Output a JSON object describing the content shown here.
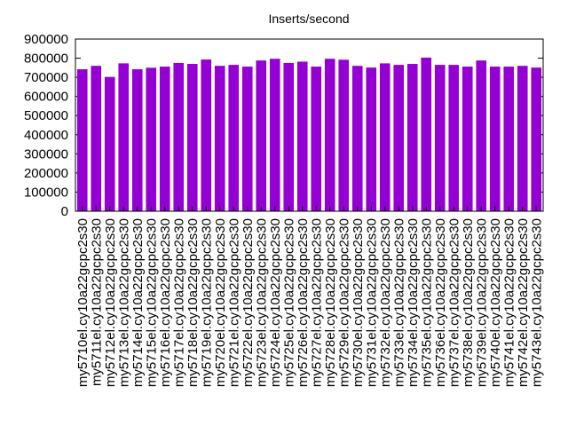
{
  "chart_data": {
    "type": "bar",
    "title": "Inserts/second",
    "xlabel": "",
    "ylabel": "",
    "ylim": [
      0,
      900000
    ],
    "yticks": [
      "0",
      "100000",
      "200000",
      "300000",
      "400000",
      "500000",
      "600000",
      "700000",
      "800000",
      "900000"
    ],
    "grid": false,
    "bar_color": "#9400d3",
    "categories": [
      "my5710el.cy10a22gcpc2s30",
      "my5711el.cy10a22gcpc2s30",
      "my5712el.cy10a22gcpc2s30",
      "my5713el.cy10a22gcpc2s30",
      "my5714el.cy10a22gcpc2s30",
      "my5715el.cy10a22gcpc2s30",
      "my5716el.cy10a22gcpc2s30",
      "my5717el.cy10a22gcpc2s30",
      "my5718el.cy10a22gcpc2s30",
      "my5719el.cy10a22gcpc2s30",
      "my5720el.cy10a22gcpc2s30",
      "my5721el.cy10a22gcpc2s30",
      "my5722el.cy10a22gcpc2s30",
      "my5723el.cy10a22gcpc2s30",
      "my5724el.cy10a22gcpc2s30",
      "my5725el.cy10a22gcpc2s30",
      "my5726el.cy10a22gcpc2s30",
      "my5727el.cy10a22gcpc2s30",
      "my5728el.cy10a22gcpc2s30",
      "my5729el.cy10a22gcpc2s30",
      "my5730el.cy10a22gcpc2s30",
      "my5731el.cy10a22gcpc2s30",
      "my5732el.cy10a22gcpc2s30",
      "my5733el.cy10a22gcpc2s30",
      "my5734el.cy10a22gcpc2s30",
      "my5735el.cy10a22gcpc2s30",
      "my5736el.cy10a22gcpc2s30",
      "my5737el.cy10a22gcpc2s30",
      "my5738el.cy10a22gcpc2s30",
      "my5739el.cy10a22gcpc2s30",
      "my5740el.cy10a22gcpc2s30",
      "my5741el.cy10a22gcpc2s30",
      "my5742el.cy10a22gcpc2s30",
      "my5743el.cy10a22gcpc2s30"
    ],
    "values": [
      742000,
      760000,
      702000,
      773000,
      742000,
      750000,
      756000,
      775000,
      770000,
      793000,
      760000,
      765000,
      756000,
      788000,
      797000,
      775000,
      782000,
      756000,
      797000,
      792000,
      760000,
      751000,
      773000,
      765000,
      770000,
      803000,
      765000,
      765000,
      756000,
      788000,
      756000,
      756000,
      760000,
      751000
    ]
  }
}
